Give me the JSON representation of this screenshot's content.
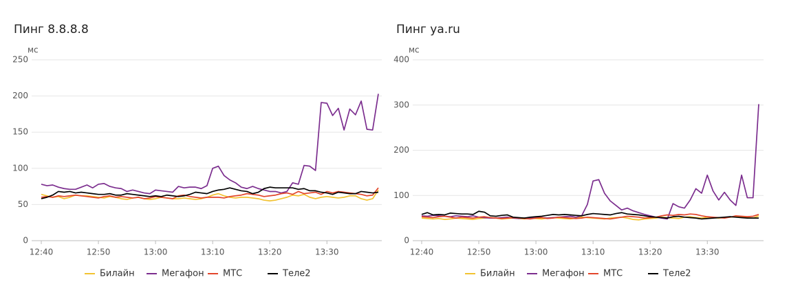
{
  "chart_data": [
    {
      "type": "line",
      "title": "Пинг 8.8.8.8",
      "y_label": "мс",
      "categories": [
        "12:40",
        null,
        null,
        null,
        null,
        null,
        null,
        null,
        null,
        null,
        "12:50",
        null,
        null,
        null,
        null,
        null,
        null,
        null,
        null,
        null,
        "13:00",
        null,
        null,
        null,
        null,
        null,
        null,
        null,
        null,
        null,
        "13:10",
        null,
        null,
        null,
        null,
        null,
        null,
        null,
        null,
        null,
        "13:20",
        null,
        null,
        null,
        null,
        null,
        null,
        null,
        null,
        null,
        "13:30",
        null,
        null,
        null,
        null,
        null,
        null,
        null,
        null,
        null
      ],
      "ylim": [
        0,
        250
      ],
      "yticks": [
        0,
        50,
        100,
        150,
        200,
        250
      ],
      "grid": true,
      "legend": "bottom",
      "series": [
        {
          "name": "Билайн",
          "color": "#f2c230",
          "values": [
            64,
            62,
            60,
            61,
            58,
            60,
            63,
            62,
            62,
            61,
            60,
            59,
            61,
            60,
            58,
            57,
            59,
            60,
            58,
            57,
            58,
            60,
            59,
            58,
            58,
            59,
            58,
            57,
            58,
            60,
            63,
            65,
            62,
            60,
            59,
            60,
            60,
            59,
            58,
            56,
            55,
            56,
            58,
            60,
            63,
            62,
            64,
            60,
            58,
            60,
            61,
            60,
            59,
            60,
            62,
            62,
            58,
            56,
            58,
            70
          ]
        },
        {
          "name": "Мегафон",
          "color": "#7b2d8e",
          "values": [
            78,
            76,
            77,
            74,
            72,
            71,
            71,
            74,
            77,
            73,
            78,
            79,
            75,
            73,
            72,
            68,
            70,
            68,
            66,
            65,
            70,
            69,
            68,
            67,
            75,
            73,
            74,
            74,
            72,
            76,
            100,
            103,
            90,
            84,
            80,
            74,
            72,
            75,
            72,
            70,
            68,
            68,
            66,
            68,
            80,
            78,
            104,
            103,
            97,
            191,
            190,
            173,
            183,
            153,
            182,
            174,
            193,
            154,
            153,
            203
          ]
        },
        {
          "name": "МТС",
          "color": "#e2452b",
          "values": [
            60,
            61,
            60,
            62,
            61,
            62,
            63,
            62,
            61,
            60,
            59,
            61,
            62,
            60,
            61,
            60,
            59,
            60,
            58,
            59,
            61,
            60,
            59,
            58,
            62,
            63,
            61,
            60,
            59,
            60,
            60,
            60,
            59,
            61,
            62,
            63,
            65,
            64,
            63,
            61,
            62,
            63,
            65,
            66,
            64,
            68,
            65,
            66,
            67,
            64,
            68,
            66,
            68,
            67,
            66,
            65,
            64,
            62,
            63,
            73
          ]
        },
        {
          "name": "Теле2",
          "color": "#000000",
          "values": [
            58,
            60,
            63,
            68,
            67,
            68,
            66,
            67,
            66,
            65,
            64,
            64,
            65,
            63,
            63,
            65,
            64,
            63,
            62,
            61,
            62,
            61,
            63,
            62,
            61,
            62,
            64,
            67,
            66,
            65,
            68,
            70,
            71,
            73,
            71,
            69,
            68,
            65,
            67,
            72,
            74,
            73,
            73,
            73,
            73,
            71,
            72,
            69,
            69,
            67,
            66,
            64,
            67,
            66,
            65,
            65,
            68,
            67,
            66,
            67
          ]
        }
      ]
    },
    {
      "type": "line",
      "title": "Пинг ya.ru",
      "y_label": "мс",
      "categories": [
        "12:40",
        null,
        null,
        null,
        null,
        null,
        null,
        null,
        null,
        null,
        "12:50",
        null,
        null,
        null,
        null,
        null,
        null,
        null,
        null,
        null,
        "13:00",
        null,
        null,
        null,
        null,
        null,
        null,
        null,
        null,
        null,
        "13:10",
        null,
        null,
        null,
        null,
        null,
        null,
        null,
        null,
        null,
        "13:20",
        null,
        null,
        null,
        null,
        null,
        null,
        null,
        null,
        null,
        "13:30",
        null,
        null,
        null,
        null,
        null,
        null,
        null,
        null,
        null
      ],
      "ylim": [
        0,
        400
      ],
      "yticks": [
        0,
        100,
        200,
        300,
        400
      ],
      "grid": true,
      "legend": "bottom",
      "series": [
        {
          "name": "Билайн",
          "color": "#f2c230",
          "values": [
            50,
            49,
            48,
            49,
            47,
            48,
            50,
            49,
            48,
            47,
            49,
            50,
            51,
            50,
            48,
            49,
            50,
            49,
            48,
            50,
            49,
            48,
            50,
            51,
            50,
            49,
            48,
            50,
            52,
            51,
            50,
            49,
            48,
            50,
            51,
            52,
            50,
            47,
            46,
            48,
            49,
            50,
            52,
            51,
            50,
            49,
            52,
            53,
            51,
            50,
            52,
            51,
            50,
            51,
            52,
            53,
            52,
            51,
            50,
            55
          ]
        },
        {
          "name": "Мегафон",
          "color": "#7b2d8e",
          "values": [
            55,
            54,
            56,
            55,
            54,
            53,
            55,
            54,
            53,
            55,
            52,
            51,
            50,
            50,
            51,
            52,
            50,
            49,
            50,
            51,
            52,
            51,
            50,
            51,
            52,
            53,
            54,
            52,
            55,
            80,
            132,
            135,
            105,
            88,
            78,
            68,
            72,
            66,
            62,
            58,
            55,
            52,
            50,
            48,
            82,
            75,
            72,
            90,
            115,
            105,
            145,
            110,
            90,
            107,
            90,
            78,
            145,
            95,
            95,
            302
          ]
        },
        {
          "name": "МТС",
          "color": "#e2452b",
          "values": [
            53,
            52,
            51,
            53,
            54,
            52,
            50,
            52,
            51,
            50,
            52,
            53,
            51,
            50,
            49,
            50,
            51,
            50,
            49,
            48,
            50,
            51,
            49,
            50,
            52,
            51,
            50,
            49,
            50,
            52,
            51,
            50,
            49,
            48,
            50,
            52,
            54,
            53,
            52,
            50,
            51,
            52,
            55,
            57,
            56,
            58,
            57,
            59,
            58,
            55,
            53,
            52,
            51,
            50,
            52,
            55,
            54,
            53,
            54,
            58
          ]
        },
        {
          "name": "Теле2",
          "color": "#000000",
          "values": [
            58,
            62,
            57,
            58,
            57,
            61,
            60,
            59,
            59,
            58,
            65,
            63,
            55,
            54,
            56,
            57,
            52,
            51,
            50,
            52,
            53,
            54,
            56,
            58,
            57,
            58,
            57,
            56,
            55,
            58,
            60,
            59,
            58,
            57,
            60,
            62,
            59,
            58,
            57,
            55,
            53,
            52,
            51,
            50,
            53,
            54,
            52,
            51,
            50,
            48,
            49,
            50,
            51,
            52,
            53,
            52,
            51,
            50,
            50,
            50
          ]
        }
      ]
    }
  ]
}
